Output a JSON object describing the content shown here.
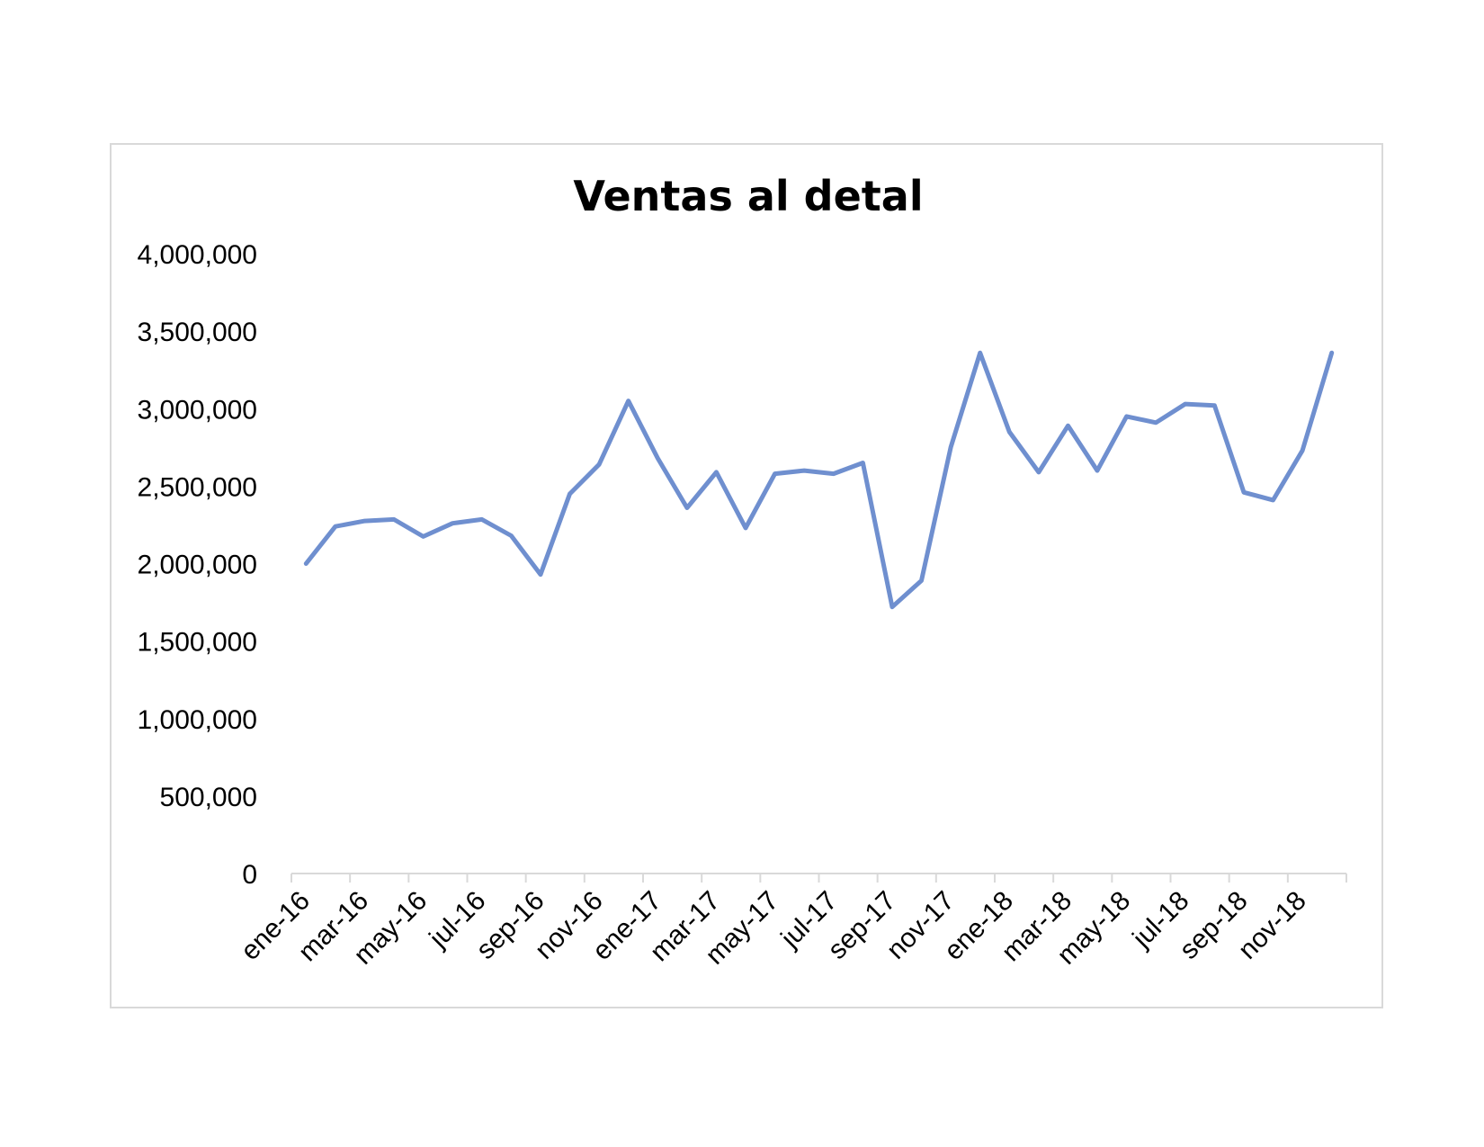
{
  "chart_data": {
    "type": "line",
    "title": "Ventas al detal",
    "xlabel": "",
    "ylabel": "",
    "ylim": [
      0,
      4000000
    ],
    "yticks": [
      0,
      500000,
      1000000,
      1500000,
      2000000,
      2500000,
      3000000,
      3500000,
      4000000
    ],
    "ytick_labels": [
      "0",
      "500,000",
      "1,000,000",
      "1,500,000",
      "2,000,000",
      "2,500,000",
      "3,000,000",
      "3,500,000",
      "4,000,000"
    ],
    "xtick_labels": [
      "ene-16",
      "mar-16",
      "may-16",
      "jul-16",
      "sep-16",
      "nov-16",
      "ene-17",
      "mar-17",
      "may-17",
      "jul-17",
      "sep-17",
      "nov-17",
      "ene-18",
      "mar-18",
      "may-18",
      "jul-18",
      "sep-18",
      "nov-18"
    ],
    "grid": false,
    "legend": "none",
    "line_color": "#6f8fcf",
    "series": [
      {
        "x": [
          "ene-16",
          "feb-16",
          "mar-16",
          "abr-16",
          "may-16",
          "jun-16",
          "jul-16",
          "ago-16",
          "sep-16",
          "oct-16",
          "nov-16",
          "dic-16",
          "ene-17",
          "feb-17",
          "mar-17",
          "abr-17",
          "may-17",
          "jun-17",
          "jul-17",
          "ago-17",
          "sep-17",
          "oct-17",
          "nov-17",
          "dic-17",
          "ene-18",
          "feb-18",
          "mar-18",
          "abr-18",
          "may-18",
          "jun-18",
          "jul-18",
          "ago-18",
          "sep-18",
          "oct-18",
          "nov-18",
          "dic-18"
        ],
        "values": [
          2000000,
          2240000,
          2275000,
          2285000,
          2175000,
          2260000,
          2285000,
          2180000,
          1930000,
          2450000,
          2640000,
          3050000,
          2680000,
          2360000,
          2590000,
          2230000,
          2580000,
          2600000,
          2580000,
          2650000,
          1720000,
          1890000,
          2750000,
          3360000,
          2850000,
          2590000,
          2890000,
          2600000,
          2950000,
          2910000,
          3030000,
          3020000,
          2460000,
          2410000,
          2730000,
          3360000
        ]
      }
    ]
  }
}
